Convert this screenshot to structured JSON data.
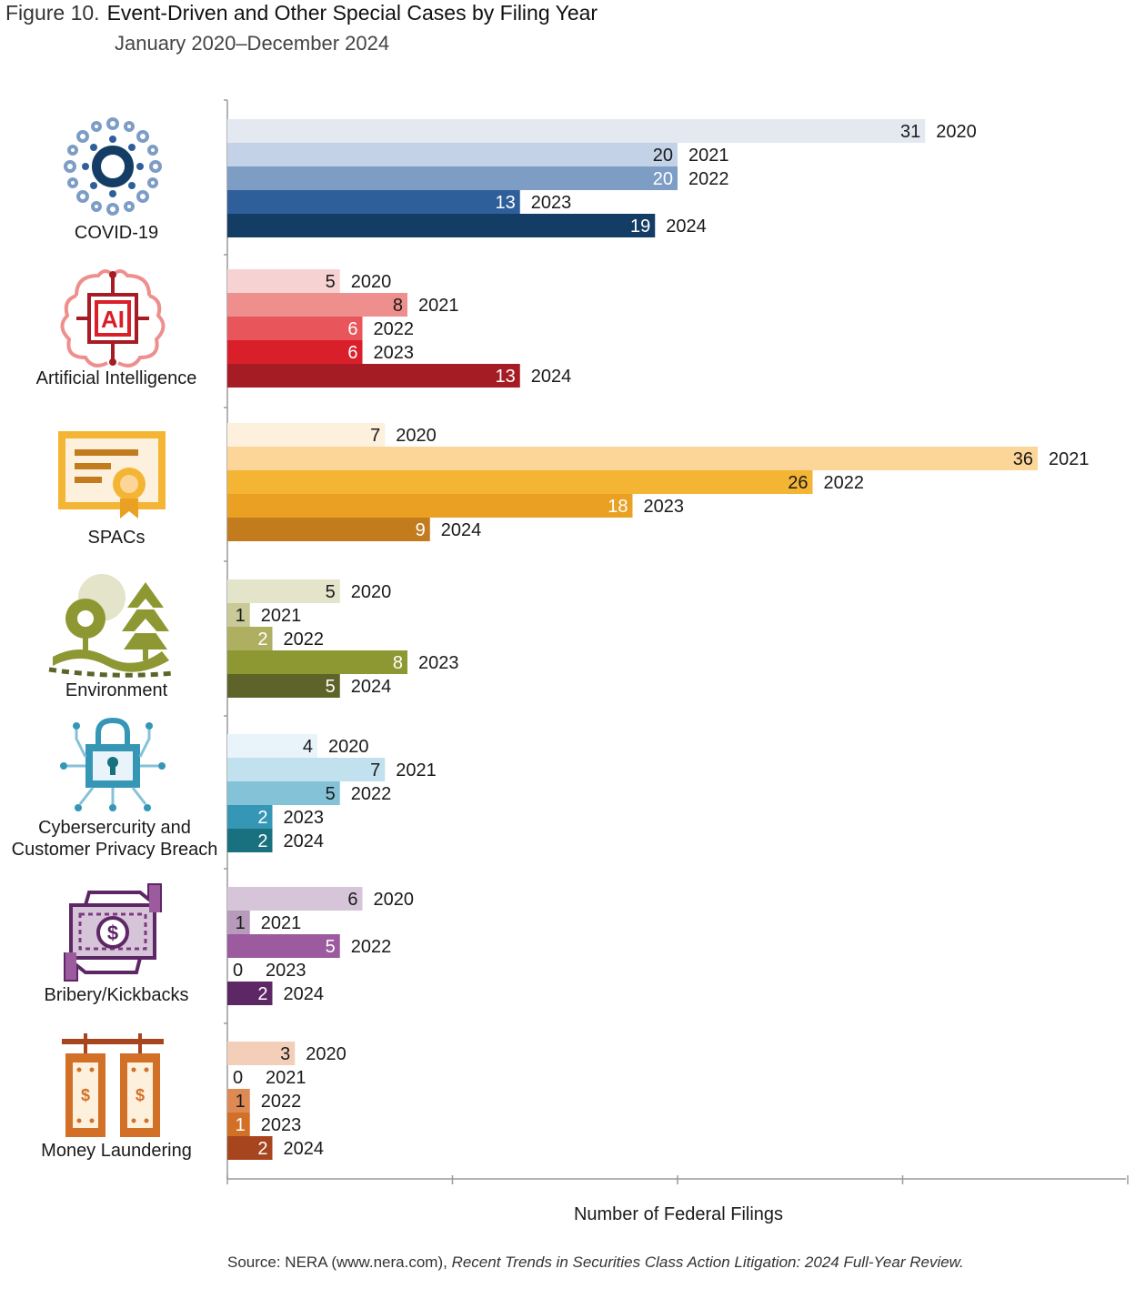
{
  "figure": {
    "number": "Figure 10.",
    "title": "Event-Driven and Other Special Cases by Filing Year",
    "subtitle": "January 2020–December 2024"
  },
  "source": {
    "prefix": "Source: NERA (www.nera.com), ",
    "publication": "Recent Trends in Securities Class Action Litigation: 2024 Full-Year Review."
  },
  "chart_data": {
    "type": "bar",
    "orientation": "horizontal",
    "xlabel": "Number of Federal Filings",
    "xlim": [
      0,
      40
    ],
    "grid": false,
    "years": [
      "2020",
      "2021",
      "2022",
      "2023",
      "2024"
    ],
    "groups": [
      {
        "name": "COVID-19",
        "icon": "virus-icon",
        "values": [
          31,
          20,
          20,
          13,
          19
        ],
        "colors": [
          "#e3e8f1",
          "#c3d2e6",
          "#7d9dc5",
          "#2f5f9b",
          "#143d65"
        ],
        "label_colors": [
          "#1a1a1a",
          "#1a1a1a",
          "#ffffff",
          "#ffffff",
          "#ffffff"
        ]
      },
      {
        "name": "Artificial Intelligence",
        "icon": "ai-chip-icon",
        "values": [
          5,
          8,
          6,
          6,
          13
        ],
        "colors": [
          "#f7d2d2",
          "#ee8f8e",
          "#e8555a",
          "#d91f2a",
          "#a61c24"
        ],
        "label_colors": [
          "#1a1a1a",
          "#1a1a1a",
          "#ffffff",
          "#ffffff",
          "#ffffff"
        ]
      },
      {
        "name": "SPACs",
        "icon": "certificate-icon",
        "values": [
          7,
          36,
          26,
          18,
          9
        ],
        "colors": [
          "#fdf0dc",
          "#fcd699",
          "#f4b535",
          "#eaa123",
          "#c27c1e"
        ],
        "label_colors": [
          "#1a1a1a",
          "#1a1a1a",
          "#1a1a1a",
          "#ffffff",
          "#ffffff"
        ]
      },
      {
        "name": "Environment",
        "icon": "environment-icon",
        "values": [
          5,
          1,
          2,
          8,
          5
        ],
        "colors": [
          "#e3e4c9",
          "#c9ca97",
          "#aeaf61",
          "#8e9832",
          "#5e6429"
        ],
        "label_colors": [
          "#1a1a1a",
          "#1a1a1a",
          "#ffffff",
          "#ffffff",
          "#ffffff"
        ]
      },
      {
        "name": "Cybersercurity and Customer Privacy Breach",
        "name_lines": [
          "Cybersercurity and",
          "Customer Privacy Breach"
        ],
        "icon": "padlock-icon",
        "values": [
          4,
          7,
          5,
          2,
          2
        ],
        "colors": [
          "#e9f3fa",
          "#c2e1ee",
          "#84c2d8",
          "#3596b6",
          "#19707f"
        ],
        "label_colors": [
          "#1a1a1a",
          "#1a1a1a",
          "#1a1a1a",
          "#ffffff",
          "#ffffff"
        ]
      },
      {
        "name": "Bribery/Kickbacks",
        "icon": "money-exchange-icon",
        "values": [
          6,
          1,
          5,
          0,
          2
        ],
        "colors": [
          "#d6c4d8",
          "#b79bbb",
          "#9c5a9f",
          "#7d3a80",
          "#5d2765"
        ],
        "label_colors": [
          "#1a1a1a",
          "#1a1a1a",
          "#ffffff",
          "#1a1a1a",
          "#ffffff"
        ]
      },
      {
        "name": "Money Laundering",
        "icon": "hanging-money-icon",
        "values": [
          3,
          0,
          1,
          1,
          2
        ],
        "colors": [
          "#f3cfba",
          "#eaaa85",
          "#de8a55",
          "#d27028",
          "#a7451f"
        ],
        "label_colors": [
          "#1a1a1a",
          "#1a1a1a",
          "#1a1a1a",
          "#ffffff",
          "#ffffff"
        ]
      }
    ]
  }
}
